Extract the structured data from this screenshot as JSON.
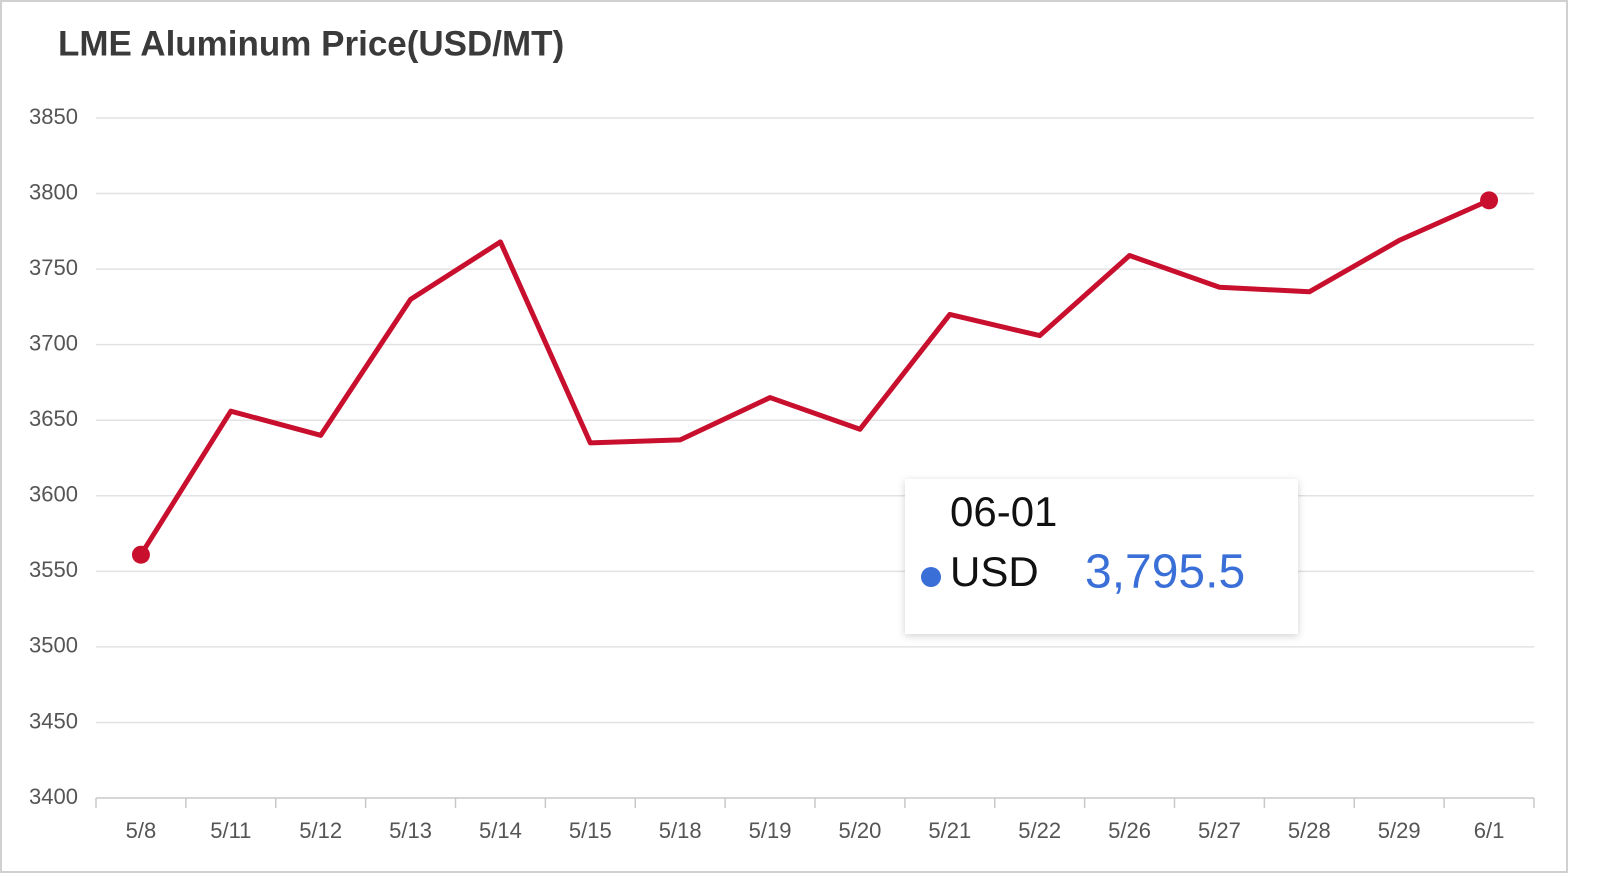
{
  "chart_data": {
    "type": "line",
    "title": "LME Aluminum Price(USD/MT)",
    "categories": [
      "5/8",
      "5/11",
      "5/12",
      "5/13",
      "5/14",
      "5/15",
      "5/18",
      "5/19",
      "5/20",
      "5/21",
      "5/22",
      "5/26",
      "5/27",
      "5/28",
      "5/29",
      "6/1"
    ],
    "series": [
      {
        "name": "USD",
        "color": "#c8102e",
        "values": [
          3561,
          3656,
          3640,
          3730,
          3768,
          3635,
          3637,
          3665,
          3644,
          3720,
          3706,
          3759,
          3738,
          3735,
          3769,
          3795.5
        ]
      }
    ],
    "ylim": [
      3400,
      3850
    ],
    "yticks": [
      3400,
      3450,
      3500,
      3550,
      3600,
      3650,
      3700,
      3750,
      3800,
      3850
    ],
    "grid": true,
    "tooltip": {
      "x": "06-01",
      "value_label": "3,795.5",
      "marker_color": "#3a6fd8"
    }
  }
}
